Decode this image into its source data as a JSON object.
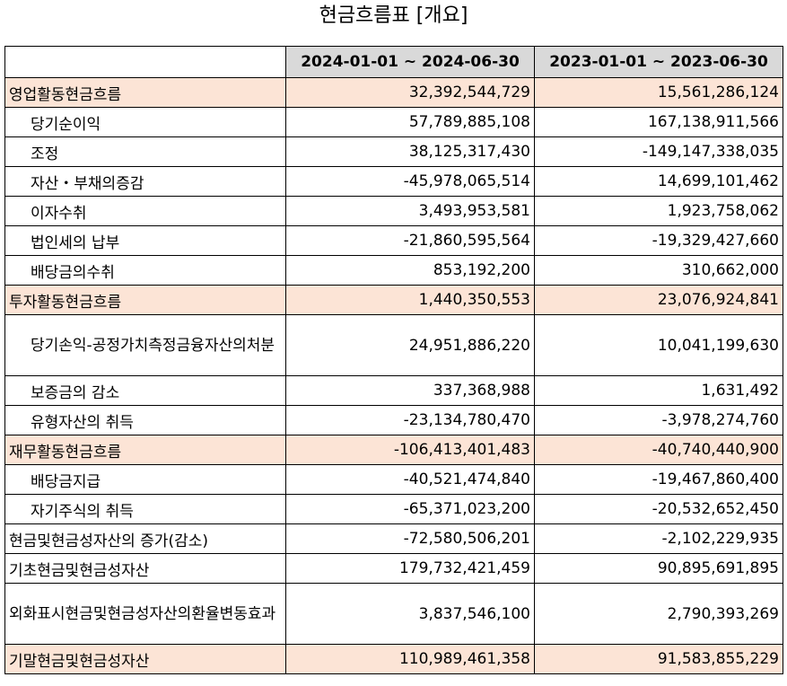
{
  "title": "현금흐름표 [개요]",
  "columns": [
    "",
    "2024-01-01 ~ 2024-06-30",
    "2023-01-01 ~ 2023-06-30"
  ],
  "rows": [
    {
      "label": "영업활동현금흐름",
      "v1": "32,392,544,729",
      "v2": "15,561,286,124",
      "highlight": true,
      "indent": false
    },
    {
      "label": "당기순이익",
      "v1": "57,789,885,108",
      "v2": "167,138,911,566",
      "highlight": false,
      "indent": true
    },
    {
      "label": "조정",
      "v1": "38,125,317,430",
      "v2": "-149,147,338,035",
      "highlight": false,
      "indent": true
    },
    {
      "label": "자산・부채의증감",
      "v1": "-45,978,065,514",
      "v2": "14,699,101,462",
      "highlight": false,
      "indent": true
    },
    {
      "label": "이자수취",
      "v1": "3,493,953,581",
      "v2": "1,923,758,062",
      "highlight": false,
      "indent": true
    },
    {
      "label": "법인세의 납부",
      "v1": "-21,860,595,564",
      "v2": "-19,329,427,660",
      "highlight": false,
      "indent": true
    },
    {
      "label": "배당금의수취",
      "v1": "853,192,200",
      "v2": "310,662,000",
      "highlight": false,
      "indent": true
    },
    {
      "label": "투자활동현금흐름",
      "v1": "1,440,350,553",
      "v2": "23,076,924,841",
      "highlight": true,
      "indent": false
    },
    {
      "label": "당기손익-공정가치측정금융자산의처분",
      "v1": "24,951,886,220",
      "v2": "10,041,199,630",
      "highlight": false,
      "indent": true,
      "tall": true
    },
    {
      "label": "보증금의 감소",
      "v1": "337,368,988",
      "v2": "1,631,492",
      "highlight": false,
      "indent": true
    },
    {
      "label": "유형자산의 취득",
      "v1": "-23,134,780,470",
      "v2": "-3,978,274,760",
      "highlight": false,
      "indent": true
    },
    {
      "label": "재무활동현금흐름",
      "v1": "-106,413,401,483",
      "v2": "-40,740,440,900",
      "highlight": true,
      "indent": false
    },
    {
      "label": "배당금지급",
      "v1": "-40,521,474,840",
      "v2": "-19,467,860,400",
      "highlight": false,
      "indent": true
    },
    {
      "label": "자기주식의 취득",
      "v1": "-65,371,023,200",
      "v2": "-20,532,652,450",
      "highlight": false,
      "indent": true
    },
    {
      "label": "현금및현금성자산의 증가(감소)",
      "v1": "-72,580,506,201",
      "v2": "-2,102,229,935",
      "highlight": false,
      "indent": false
    },
    {
      "label": "기초현금및현금성자산",
      "v1": "179,732,421,459",
      "v2": "90,895,691,895",
      "highlight": false,
      "indent": false
    },
    {
      "label": "외화표시현금및현금성자산의환율변동효과",
      "v1": "3,837,546,100",
      "v2": "2,790,393,269",
      "highlight": false,
      "indent": false,
      "tall": true
    },
    {
      "label": "기말현금및현금성자산",
      "v1": "110,989,461,358",
      "v2": "91,583,855,229",
      "highlight": true,
      "indent": false
    }
  ]
}
